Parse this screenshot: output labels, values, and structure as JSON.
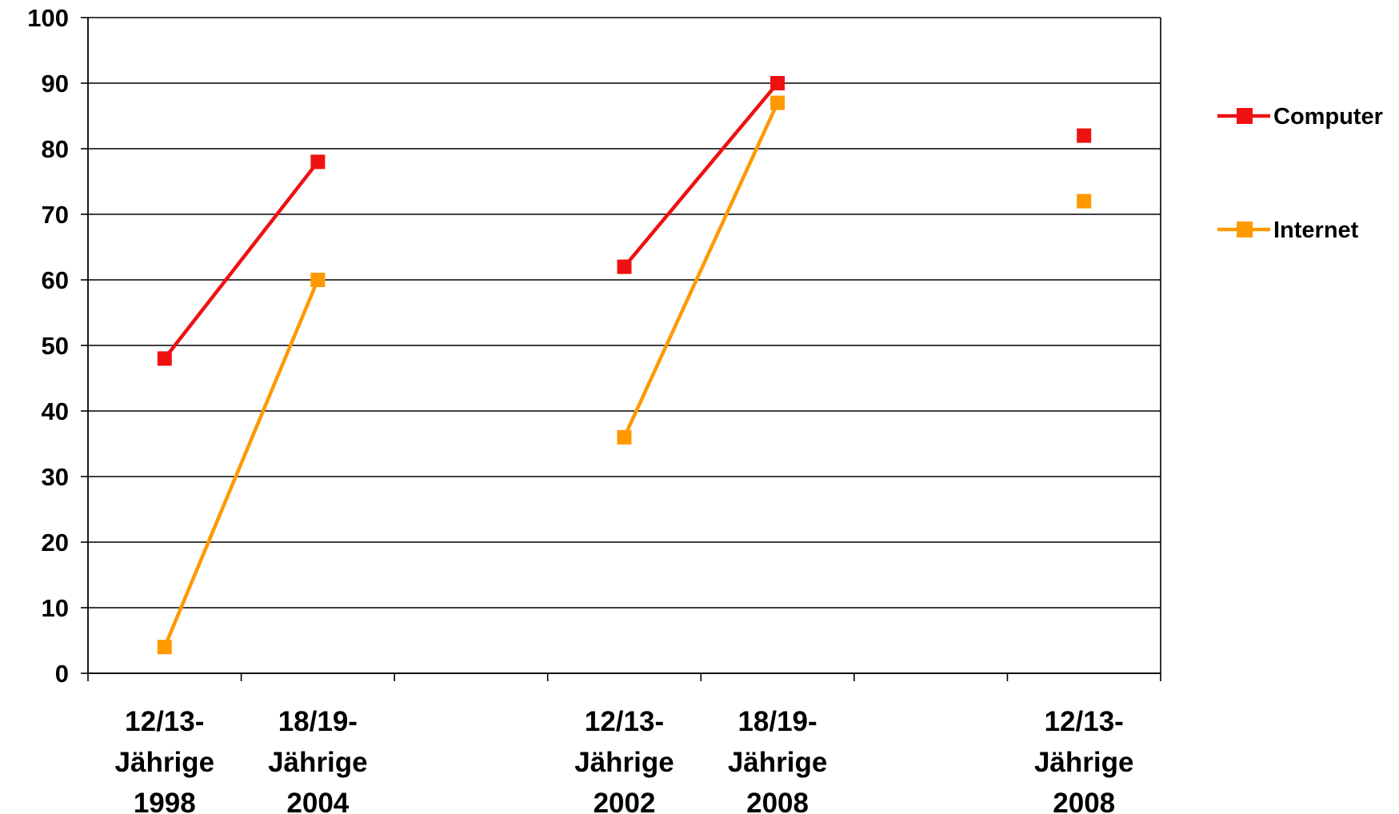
{
  "chart_data": {
    "type": "line",
    "title": "",
    "xlabel": "",
    "ylabel": "",
    "ylim": [
      0,
      100
    ],
    "yticks": [
      0,
      10,
      20,
      30,
      40,
      50,
      60,
      70,
      80,
      90,
      100
    ],
    "grid": "horizontal",
    "legend_position": "right",
    "categories": [
      [
        "12/13-",
        "Jährige",
        "1998"
      ],
      [
        "18/19-",
        "Jährige",
        "2004"
      ],
      null,
      [
        "12/13-",
        "Jährige",
        "2002"
      ],
      [
        "18/19-",
        "Jährige",
        "2008"
      ],
      null,
      [
        "12/13-",
        "Jährige",
        "2008"
      ]
    ],
    "series": [
      {
        "name": "Computer",
        "color": "#ee1111",
        "segments": [
          [
            {
              "slot": 0,
              "y": 48
            },
            {
              "slot": 1,
              "y": 78
            }
          ],
          [
            {
              "slot": 3,
              "y": 62
            },
            {
              "slot": 4,
              "y": 90
            }
          ],
          [
            {
              "slot": 6,
              "y": 82
            }
          ]
        ]
      },
      {
        "name": "Internet",
        "color": "#ff9900",
        "segments": [
          [
            {
              "slot": 0,
              "y": 4
            },
            {
              "slot": 1,
              "y": 60
            }
          ],
          [
            {
              "slot": 3,
              "y": 36
            },
            {
              "slot": 4,
              "y": 87
            }
          ],
          [
            {
              "slot": 6,
              "y": 72
            }
          ]
        ]
      }
    ]
  }
}
